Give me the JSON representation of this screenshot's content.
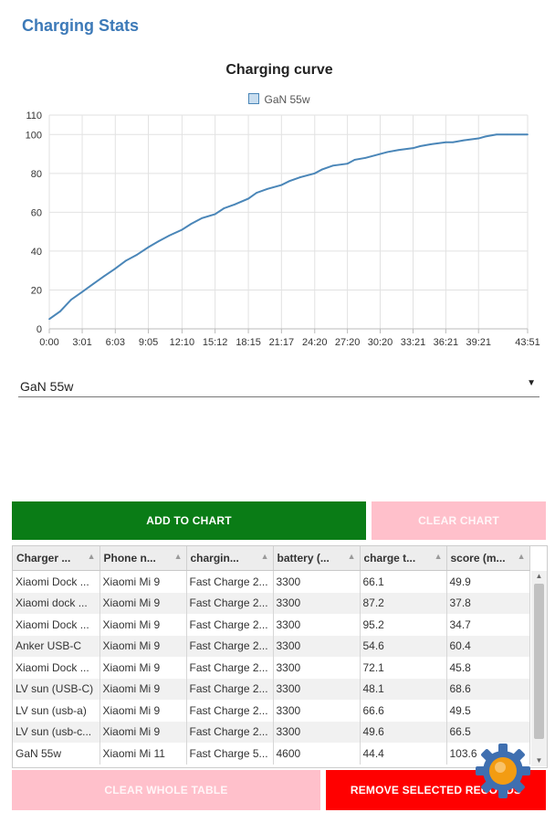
{
  "page": {
    "title": "Charging Stats"
  },
  "chart_data": {
    "type": "line",
    "title": "Charging curve",
    "series": [
      {
        "name": "GaN 55w",
        "color": "#4a86b8",
        "x": [
          "0:00",
          "1:00",
          "2:00",
          "3:01",
          "4:00",
          "5:00",
          "6:03",
          "7:00",
          "8:00",
          "9:05",
          "10:00",
          "11:00",
          "12:10",
          "13:00",
          "14:00",
          "15:12",
          "16:00",
          "17:00",
          "18:15",
          "19:00",
          "20:00",
          "21:17",
          "22:00",
          "23:00",
          "24:20",
          "25:00",
          "26:00",
          "27:20",
          "28:00",
          "29:00",
          "30:20",
          "31:00",
          "32:00",
          "33:21",
          "34:00",
          "35:00",
          "36:21",
          "37:00",
          "38:00",
          "39:21",
          "40:00",
          "41:00",
          "42:00",
          "43:51"
        ],
        "values": [
          5,
          9,
          15,
          19,
          23,
          27,
          31,
          35,
          38,
          42,
          45,
          48,
          51,
          54,
          57,
          59,
          62,
          64,
          67,
          70,
          72,
          74,
          76,
          78,
          80,
          82,
          84,
          85,
          87,
          88,
          90,
          91,
          92,
          93,
          94,
          95,
          96,
          96,
          97,
          98,
          99,
          100,
          100,
          100
        ]
      }
    ],
    "xticks": [
      "0:00",
      "3:01",
      "6:03",
      "9:05",
      "12:10",
      "15:12",
      "18:15",
      "21:17",
      "24:20",
      "27:20",
      "30:20",
      "33:21",
      "36:21",
      "39:21",
      "43:51"
    ],
    "yticks": [
      0,
      20,
      40,
      60,
      80,
      100,
      110
    ],
    "ylim": [
      0,
      110
    ],
    "grid": true,
    "legend": "top"
  },
  "selector": {
    "value": "GaN 55w"
  },
  "buttons": {
    "add_to_chart": "ADD TO CHART",
    "clear_chart": "CLEAR CHART",
    "clear_whole_table": "CLEAR WHOLE TABLE",
    "remove_selected": "REMOVE SELECTED RECORDS"
  },
  "table": {
    "columns": [
      "Charger ...",
      "Phone n...",
      "chargin...",
      "battery (...",
      "charge t...",
      "score (m..."
    ],
    "rows": [
      [
        "Xiaomi Dock ...",
        "Xiaomi Mi 9",
        "Fast Charge 2...",
        "3300",
        "66.1",
        "49.9"
      ],
      [
        "Xiaomi dock ...",
        "Xiaomi Mi 9",
        "Fast Charge 2...",
        "3300",
        "87.2",
        "37.8"
      ],
      [
        "Xiaomi Dock ...",
        "Xiaomi Mi 9",
        "Fast Charge 2...",
        "3300",
        "95.2",
        "34.7"
      ],
      [
        "Anker USB-C",
        "Xiaomi Mi 9",
        "Fast Charge 2...",
        "3300",
        "54.6",
        "60.4"
      ],
      [
        "Xiaomi Dock ...",
        "Xiaomi Mi 9",
        "Fast Charge 2...",
        "3300",
        "72.1",
        "45.8"
      ],
      [
        "LV sun (USB-C)",
        "Xiaomi Mi 9",
        "Fast Charge 2...",
        "3300",
        "48.1",
        "68.6"
      ],
      [
        "LV sun (usb-a)",
        "Xiaomi Mi 9",
        "Fast Charge 2...",
        "3300",
        "66.6",
        "49.5"
      ],
      [
        "LV sun (usb-c...",
        "Xiaomi Mi 9",
        "Fast Charge 2...",
        "3300",
        "49.6",
        "66.5"
      ],
      [
        "GaN 55w",
        "Xiaomi Mi 11",
        "Fast Charge 5...",
        "4600",
        "44.4",
        "103.6"
      ]
    ]
  },
  "icons": {
    "sort": "sort-up-icon",
    "dropdown": "caret-down-icon",
    "watermark": "gear-logo-icon"
  },
  "colors": {
    "accent": "#3d7ab8",
    "add": "#0a7c16",
    "clear": "#ffc0cb",
    "remove": "#ff0000"
  }
}
